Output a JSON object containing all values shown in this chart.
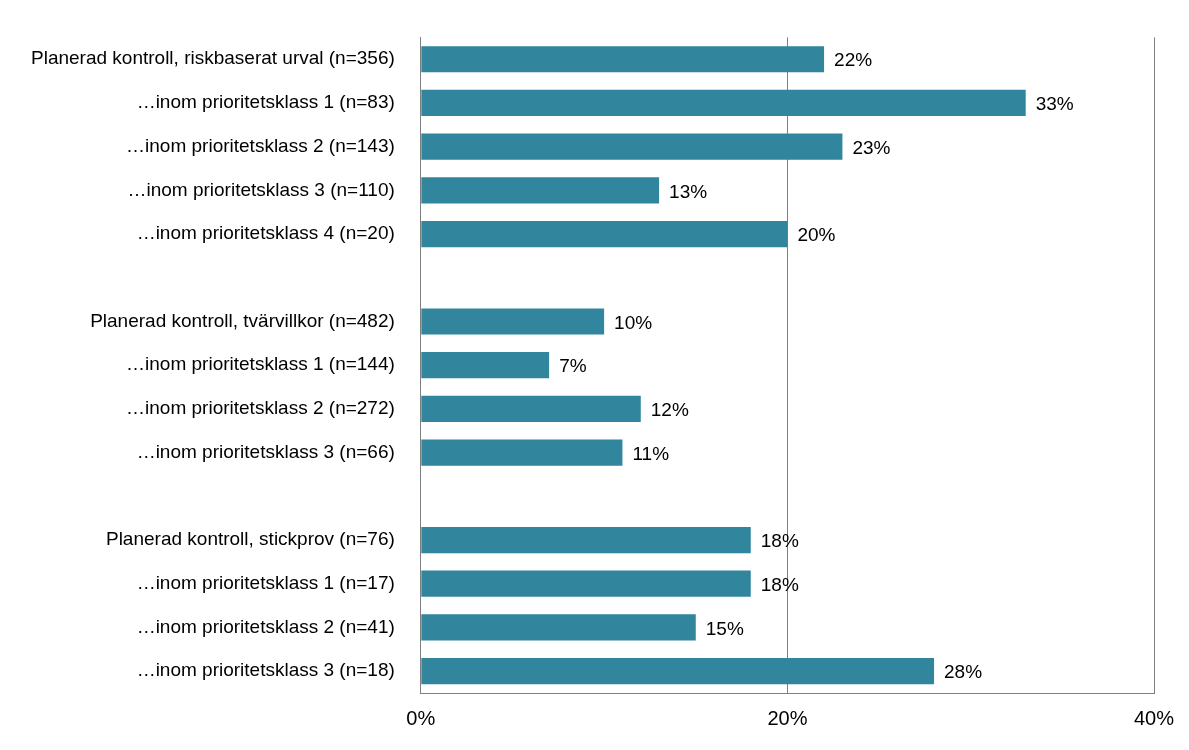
{
  "chart_data": {
    "type": "bar",
    "orientation": "horizontal",
    "categories": [
      "Planerad kontroll, riskbaserat urval (n=356)",
      "…inom prioritetsklass 1 (n=83)",
      "…inom prioritetsklass 2 (n=143)",
      "…inom prioritetsklass 3 (n=110)",
      "…inom prioritetsklass 4 (n=20)",
      null,
      "Planerad kontroll, tvärvillkor (n=482)",
      "…inom prioritetsklass 1 (n=144)",
      "…inom prioritetsklass 2 (n=272)",
      "…inom prioritetsklass 3 (n=66)",
      null,
      "Planerad kontroll, stickprov (n=76)",
      "…inom prioritetsklass 1 (n=17)",
      "…inom prioritetsklass 2 (n=41)",
      "…inom prioritetsklass 3 (n=18)"
    ],
    "values": [
      22,
      33,
      23,
      13,
      20,
      null,
      10,
      7,
      12,
      11,
      null,
      18,
      18,
      15,
      28
    ],
    "value_labels": [
      "22%",
      "33%",
      "23%",
      "13%",
      "20%",
      null,
      "10%",
      "7%",
      "12%",
      "11%",
      null,
      "18%",
      "18%",
      "15%",
      "28%"
    ],
    "color": "#31859c",
    "xlim": [
      0,
      40
    ],
    "xticks": [
      {
        "value": 0,
        "label": "0%"
      },
      {
        "value": 20,
        "label": "20%"
      },
      {
        "value": 40,
        "label": "40%"
      }
    ],
    "grid": "x"
  }
}
